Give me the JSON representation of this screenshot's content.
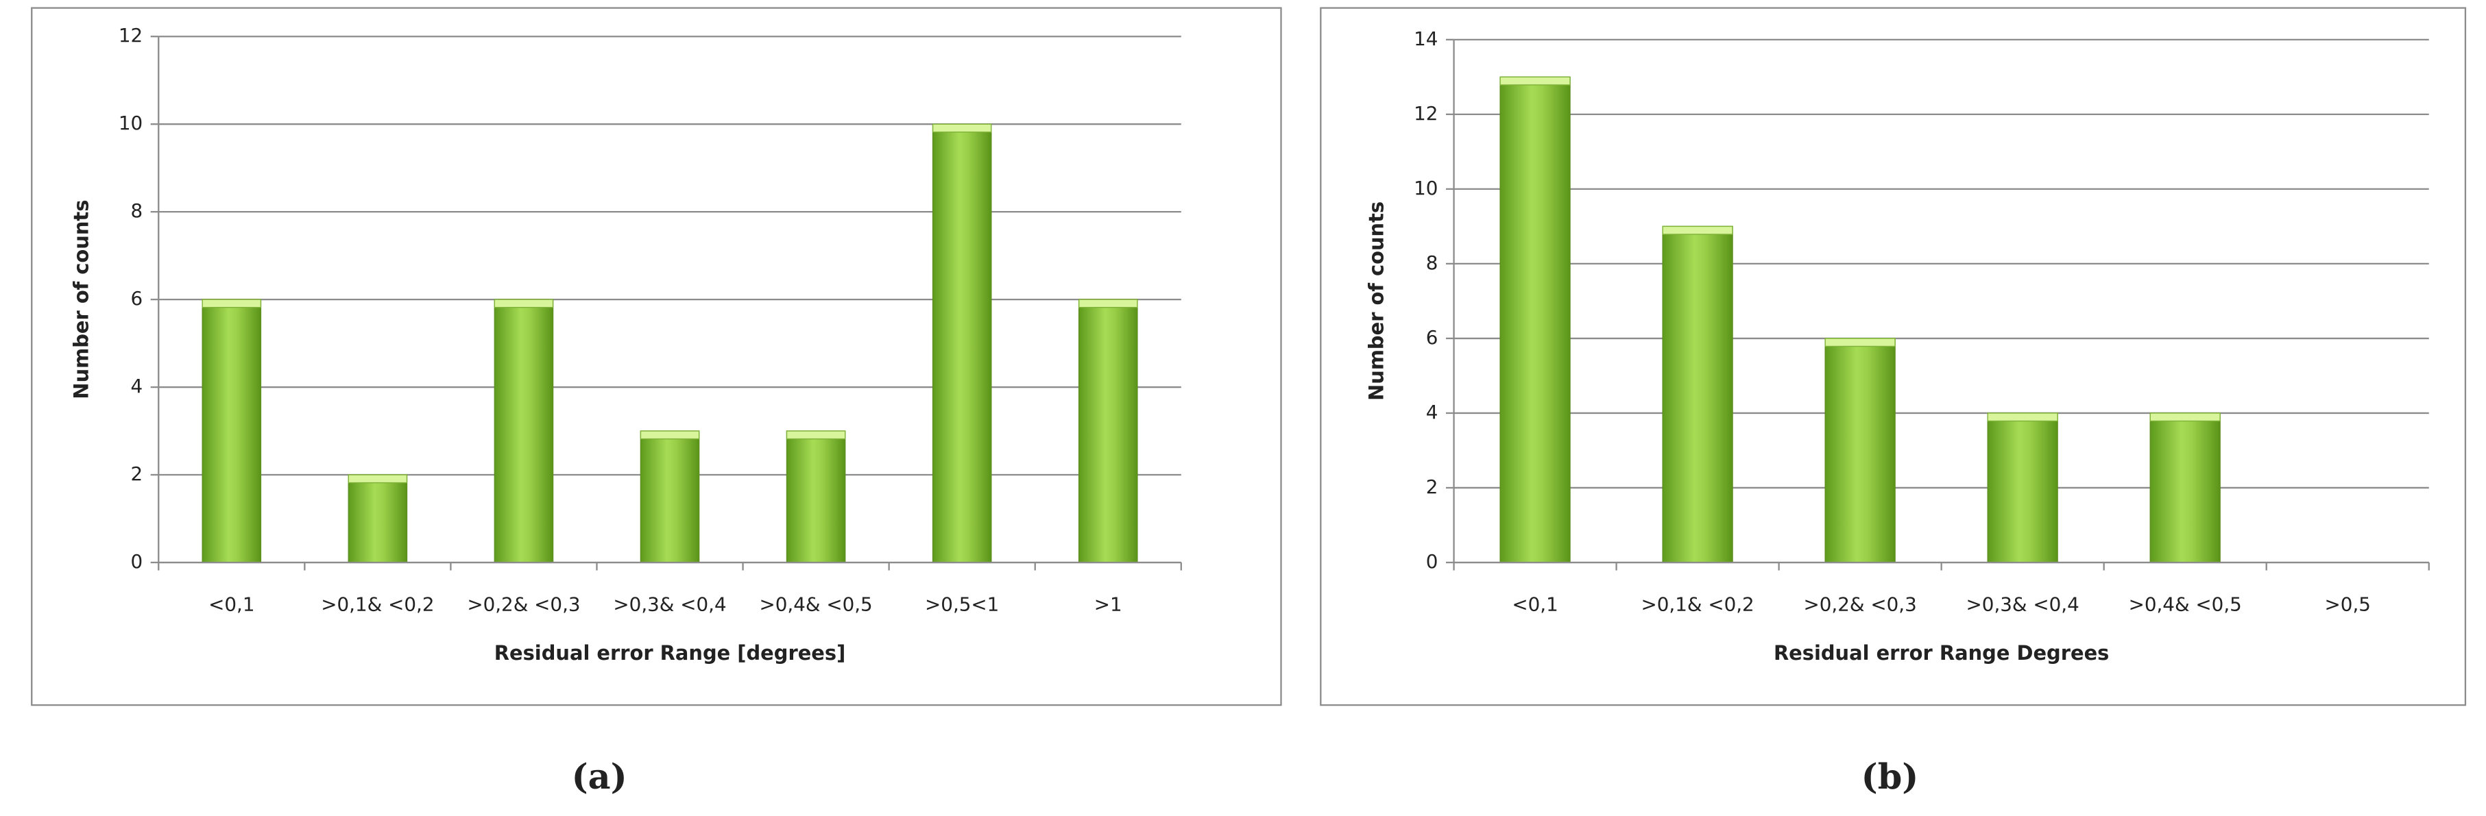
{
  "chart_data": [
    {
      "type": "bar",
      "panel_label": "(a)",
      "x_label": "Residual error Range [degrees]",
      "y_label": "Number of counts",
      "categories": [
        "<0,1",
        ">0,1& <0,2",
        ">0,2& <0,3",
        ">0,3& <0,4",
        ">0,4& <0,5",
        ">0,5<1",
        ">1"
      ],
      "values": [
        6,
        2,
        6,
        3,
        3,
        10,
        6
      ],
      "color": "#8dc63f",
      "ylim": [
        0,
        12
      ],
      "yticks": [
        0,
        2,
        4,
        6,
        8,
        10,
        12
      ],
      "grid": true
    },
    {
      "type": "bar",
      "panel_label": "(b)",
      "x_label": "Residual error Range Degrees",
      "y_label": "Number of counts",
      "categories": [
        "<0,1",
        ">0,1& <0,2",
        ">0,2& <0,3",
        ">0,3& <0,4",
        ">0,4& <0,5",
        ">0,5"
      ],
      "values": [
        13,
        9,
        6,
        4,
        4,
        0
      ],
      "color": "#8dc63f",
      "ylim": [
        0,
        14
      ],
      "yticks": [
        0,
        2,
        4,
        6,
        8,
        10,
        12,
        14
      ],
      "grid": true
    }
  ]
}
